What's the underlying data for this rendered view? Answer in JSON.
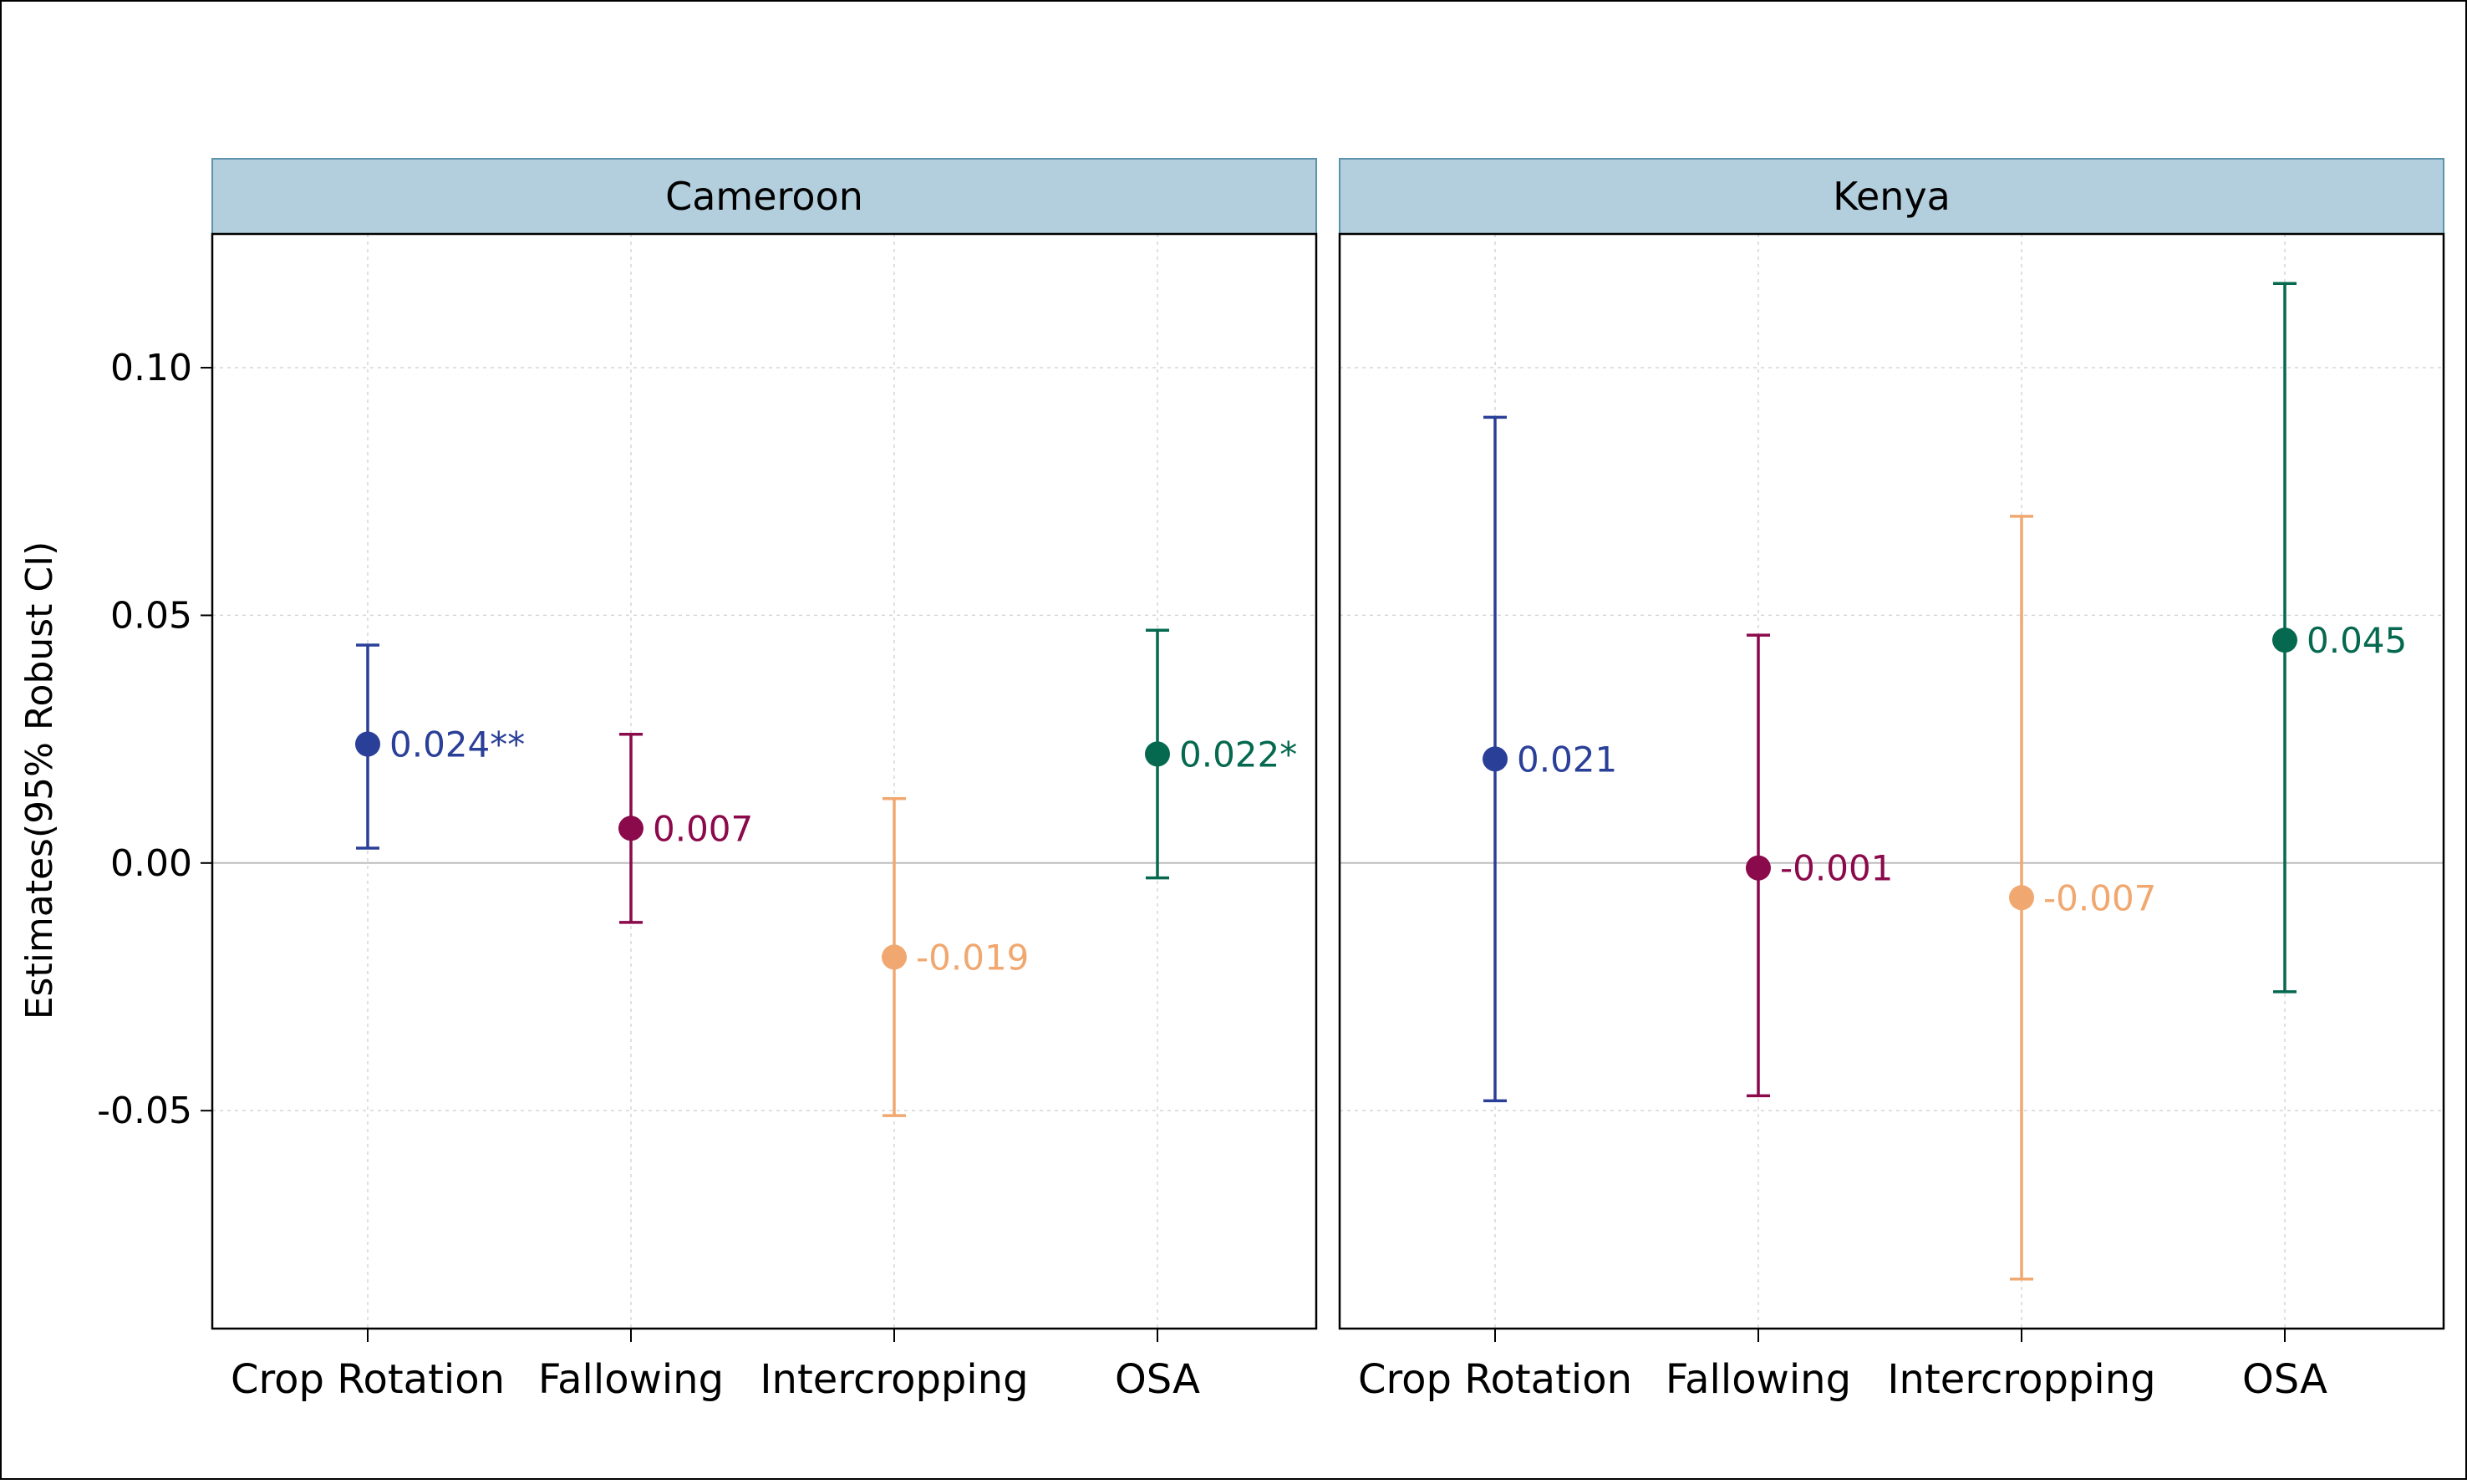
{
  "chart_data": {
    "type": "scatter",
    "ylabel": "Estimates(95% Robust CI)",
    "yticks": [
      0.1,
      0.05,
      0.0,
      -0.05
    ],
    "ytick_labels": [
      "0.10",
      "0.05",
      "0.00",
      "-0.05"
    ],
    "ylim": [
      -0.094,
      0.127
    ],
    "grid": true,
    "reference_line": 0,
    "categories": [
      "Crop Rotation",
      "Fallowing",
      "Intercropping",
      "OSA"
    ],
    "category_colors": [
      "#2a3f98",
      "#8b0a4c",
      "#f0a870",
      "#05694f"
    ],
    "panels": [
      {
        "name": "Cameroon",
        "points": [
          {
            "category": "Crop Rotation",
            "estimate": 0.024,
            "lower": 0.003,
            "upper": 0.044,
            "label": "0.024**"
          },
          {
            "category": "Fallowing",
            "estimate": 0.007,
            "lower": -0.012,
            "upper": 0.026,
            "label": "0.007"
          },
          {
            "category": "Intercropping",
            "estimate": -0.019,
            "lower": -0.051,
            "upper": 0.013,
            "label": "-0.019"
          },
          {
            "category": "OSA",
            "estimate": 0.022,
            "lower": -0.003,
            "upper": 0.047,
            "label": "0.022*"
          }
        ]
      },
      {
        "name": "Kenya",
        "points": [
          {
            "category": "Crop Rotation",
            "estimate": 0.021,
            "lower": -0.048,
            "upper": 0.09,
            "label": "0.021"
          },
          {
            "category": "Fallowing",
            "estimate": -0.001,
            "lower": -0.047,
            "upper": 0.046,
            "label": "-0.001"
          },
          {
            "category": "Intercropping",
            "estimate": -0.007,
            "lower": -0.084,
            "upper": 0.07,
            "label": "-0.007"
          },
          {
            "category": "OSA",
            "estimate": 0.045,
            "lower": -0.026,
            "upper": 0.117,
            "label": "0.045"
          }
        ]
      }
    ]
  }
}
